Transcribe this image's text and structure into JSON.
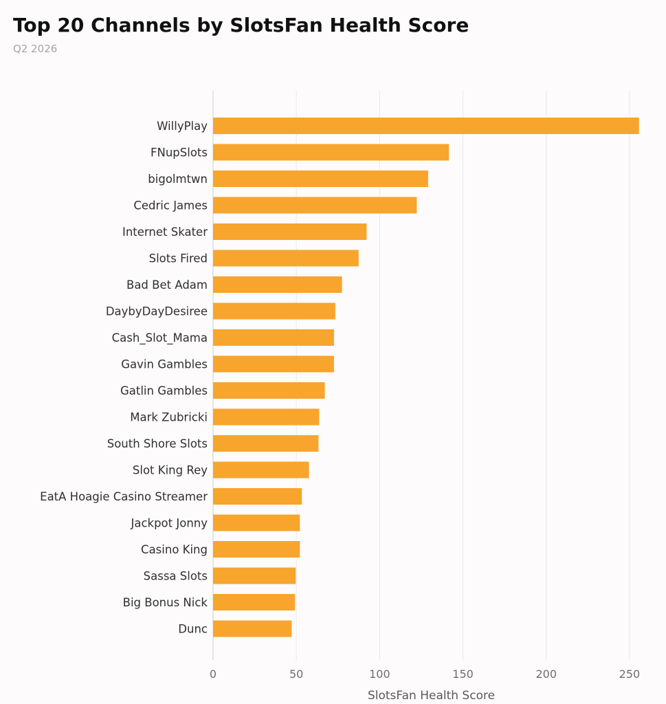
{
  "chart_data": {
    "type": "bar",
    "orientation": "horizontal",
    "title": "Top 20 Channels by SlotsFan Health Score",
    "subtitle": "Q2 2026",
    "xlabel": "SlotsFan Health Score",
    "ylabel": "",
    "xlim": [
      0,
      262
    ],
    "xticks": [
      0,
      50,
      100,
      150,
      200,
      250
    ],
    "grid": "vertical",
    "legend": "none",
    "bar_color": "#f7a52d",
    "categories": [
      "WillyPlay",
      "FNupSlots",
      "bigolmtwn",
      "Cedric James",
      "Internet Skater",
      "Slots Fired",
      "Bad Bet Adam",
      "DaybyDayDesiree",
      "Cash_Slot_Mama",
      "Gavin Gambles",
      "Gatlin Gambles",
      "Mark Zubricki",
      "South Shore Slots",
      "Slot King Rey",
      "EatA Hoagie Casino Streamer",
      "Jackpot Jonny",
      "Casino King",
      "Sassa Slots",
      "Big Bonus Nick",
      "Dunc"
    ],
    "values": [
      255.7,
      141.6,
      129.1,
      122.3,
      92.2,
      87.4,
      77.4,
      73.4,
      72.6,
      72.6,
      67.1,
      63.7,
      63.3,
      57.6,
      53.3,
      52.1,
      52.1,
      49.6,
      49.2,
      47.2
    ]
  }
}
